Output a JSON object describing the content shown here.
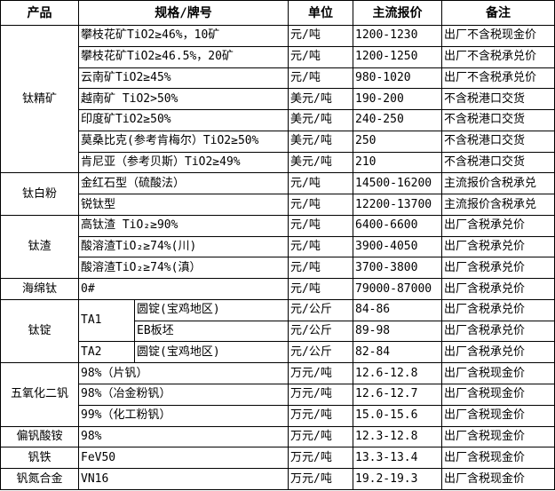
{
  "headers": [
    "产品",
    "规格/牌号",
    "单位",
    "主流报价",
    "备注"
  ],
  "groups": [
    {
      "product": "钛精矿",
      "rows": [
        {
          "spec": "攀枝花矿TiO2≥46%，10矿",
          "unit": "元/吨",
          "price": "1200-1230",
          "note": "出厂不含税现金价"
        },
        {
          "spec": "攀枝花矿TiO2≥46.5%，20矿",
          "unit": "元/吨",
          "price": "1200-1250",
          "note": "出厂不含税承兑价"
        },
        {
          "spec": "云南矿TiO2≥45%",
          "unit": "元/吨",
          "price": "980-1020",
          "note": "出厂不含税承兑价"
        },
        {
          "spec": "越南矿 TiO2>50%",
          "unit": "美元/吨",
          "price": "190-200",
          "note": "不含税港口交货"
        },
        {
          "spec": "印度矿TiO2≥50%",
          "unit": "美元/吨",
          "price": "240-250",
          "note": "不含税港口交货"
        },
        {
          "spec": "莫桑比克(参考肯梅尔）TiO2≥50%",
          "unit": "美元/吨",
          "price": "250",
          "note": "不含税港口交货"
        },
        {
          "spec": "肯尼亚（参考贝斯）TiO2≥49%",
          "unit": "美元/吨",
          "price": "210",
          "note": "不含税港口交货"
        }
      ]
    },
    {
      "product": "钛白粉",
      "rows": [
        {
          "spec": "金红石型（硫酸法）",
          "unit": "元/吨",
          "price": "14500-16200",
          "note": "主流报价含税承兑"
        },
        {
          "spec": "锐钛型",
          "unit": "元/吨",
          "price": "12200-13700",
          "note": "主流报价含税承兑"
        }
      ]
    },
    {
      "product": "钛渣",
      "rows": [
        {
          "spec": "高钛渣 TiO₂≥90%",
          "unit": "元/吨",
          "price": "6400-6600",
          "note": "出厂含税承兑价"
        },
        {
          "spec": "酸溶渣TiO₂≥74%(川)",
          "unit": "元/吨",
          "price": "3900-4050",
          "note": "出厂含税承兑价"
        },
        {
          "spec": "酸溶渣TiO₂≥74%(滇）",
          "unit": "元/吨",
          "price": "3700-3800",
          "note": "出厂含税承兑价"
        }
      ]
    },
    {
      "product": "海绵钛",
      "rows": [
        {
          "spec": "0#",
          "unit": "元/吨",
          "price": "79000-87000",
          "note": "出厂含税承兑价"
        }
      ]
    },
    {
      "product": "钛锭",
      "rows": [
        {
          "grade": "TA1",
          "grade_span": 2,
          "spec": "圆锭(宝鸡地区)",
          "unit": "元/公斤",
          "price": "84-86",
          "note": "出厂含税承兑价"
        },
        {
          "spec": "EB板坯",
          "unit": "元/公斤",
          "price": "89-98",
          "note": "出厂含税承兑价"
        },
        {
          "grade": "TA2",
          "grade_span": 1,
          "spec": "圆锭(宝鸡地区)",
          "unit": "元/公斤",
          "price": "82-84",
          "note": "出厂含税承兑价"
        }
      ]
    },
    {
      "product": "五氧化二钒",
      "rows": [
        {
          "spec": "98%（片钒）",
          "unit": "万元/吨",
          "price": "12.6-12.8",
          "note": "出厂含税现金价"
        },
        {
          "spec": "98%（冶金粉钒）",
          "unit": "万元/吨",
          "price": "12.6-12.7",
          "note": "出厂含税现金价"
        },
        {
          "spec": "99%（化工粉钒）",
          "unit": "万元/吨",
          "price": "15.0-15.6",
          "note": "出厂含税现金价"
        }
      ]
    },
    {
      "product": "偏钒酸铵",
      "rows": [
        {
          "spec": "98%",
          "unit": "万元/吨",
          "price": "12.3-12.8",
          "note": "出厂含税现金价"
        }
      ]
    },
    {
      "product": "钒铁",
      "rows": [
        {
          "spec": "FeV50",
          "unit": "万元/吨",
          "price": "13.3-13.4",
          "note": "出厂含税现金价"
        }
      ]
    },
    {
      "product": "钒氮合金",
      "rows": [
        {
          "spec": "VN16",
          "unit": "万元/吨",
          "price": "19.2-19.3",
          "note": "出厂含税现金价"
        }
      ]
    }
  ]
}
